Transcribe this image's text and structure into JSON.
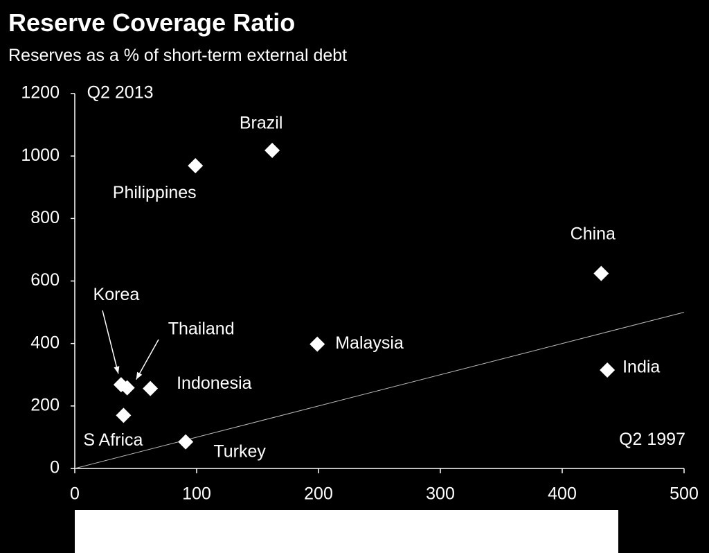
{
  "chart_data": {
    "type": "scatter",
    "title": "Reserve Coverage Ratio",
    "subtitle": "Reserves as a % of short-term external debt",
    "xlabel": "",
    "ylabel": "",
    "xlim": [
      0,
      500
    ],
    "ylim": [
      0,
      1200
    ],
    "x_ticks": [
      0,
      100,
      200,
      300,
      400,
      500
    ],
    "y_ticks": [
      0,
      200,
      400,
      600,
      800,
      1000,
      1200
    ],
    "x_axis_annotation": "Q2 1997",
    "y_axis_annotation": "Q2 2013",
    "reference_line": {
      "from": [
        0,
        0
      ],
      "to": [
        500,
        500
      ],
      "label": "45-degree line"
    },
    "points": [
      {
        "label": "Brazil",
        "x": 162,
        "y": 1018
      },
      {
        "label": "Philippines",
        "x": 99,
        "y": 969
      },
      {
        "label": "China",
        "x": 432,
        "y": 624
      },
      {
        "label": "Malaysia",
        "x": 199,
        "y": 398
      },
      {
        "label": "India",
        "x": 437,
        "y": 315
      },
      {
        "label": "Korea",
        "x": 38,
        "y": 268
      },
      {
        "label": "Thailand",
        "x": 43,
        "y": 258
      },
      {
        "label": "Indonesia",
        "x": 62,
        "y": 256
      },
      {
        "label": "S Africa",
        "x": 40,
        "y": 170
      },
      {
        "label": "Turkey",
        "x": 91,
        "y": 85
      }
    ]
  }
}
